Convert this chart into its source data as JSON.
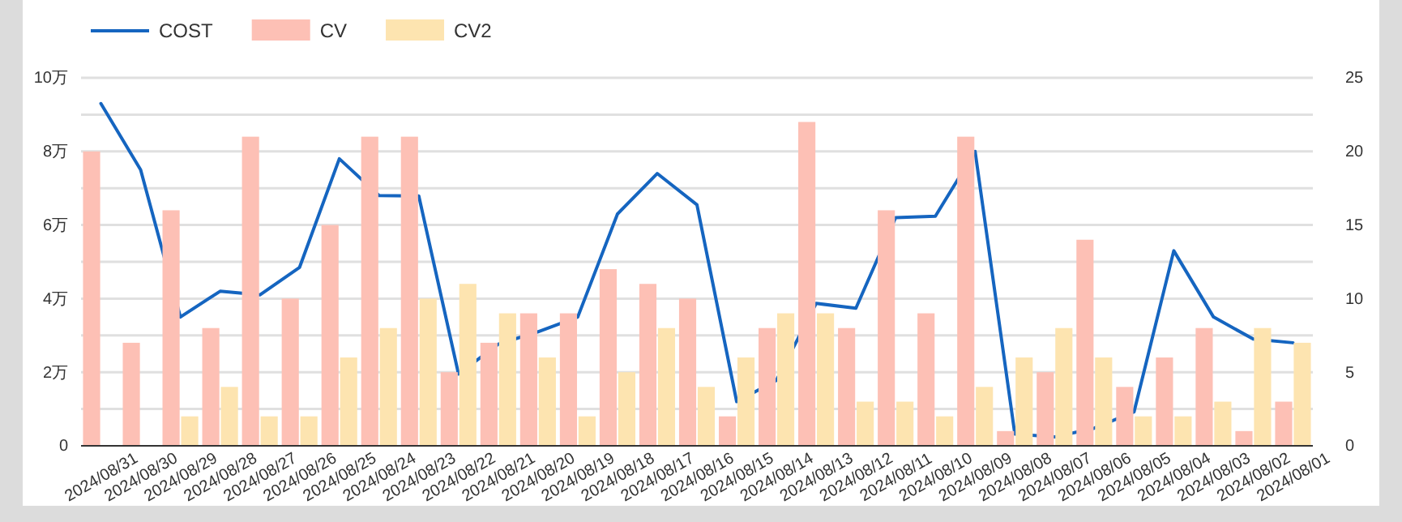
{
  "chart_data": {
    "type": "bar",
    "categories": [
      "2024/08/31",
      "2024/08/30",
      "2024/08/29",
      "2024/08/28",
      "2024/08/27",
      "2024/08/26",
      "2024/08/25",
      "2024/08/24",
      "2024/08/23",
      "2024/08/22",
      "2024/08/21",
      "2024/08/20",
      "2024/08/19",
      "2024/08/18",
      "2024/08/17",
      "2024/08/16",
      "2024/08/15",
      "2024/08/14",
      "2024/08/13",
      "2024/08/12",
      "2024/08/11",
      "2024/08/10",
      "2024/08/09",
      "2024/08/08",
      "2024/08/07",
      "2024/08/06",
      "2024/08/05",
      "2024/08/04",
      "2024/08/03",
      "2024/08/02",
      "2024/08/01"
    ],
    "series": [
      {
        "name": "COST",
        "type": "line",
        "color": "#1565c0",
        "values": [
          9.3,
          7.5,
          3.5,
          4.2,
          4.1,
          4.85,
          7.8,
          6.8,
          6.79,
          1.95,
          2.76,
          3.1,
          3.5,
          6.3,
          7.4,
          6.55,
          1.2,
          1.78,
          3.87,
          3.74,
          6.2,
          6.24,
          8.0,
          0.32,
          0.24,
          0.48,
          0.92,
          5.3,
          3.5,
          2.9,
          2.8
        ]
      },
      {
        "name": "CV",
        "axis": "y2",
        "color": "#fdc0b5",
        "values": [
          20,
          7,
          16,
          8,
          21,
          10,
          15,
          21,
          21,
          5,
          7,
          9,
          9,
          12,
          11,
          10,
          2,
          8,
          22,
          8,
          16,
          9,
          21,
          1,
          5,
          14,
          4,
          6,
          8,
          1,
          3
        ]
      },
      {
        "name": "CV2",
        "axis": "y2",
        "color": "#fde4b0",
        "values": [
          null,
          null,
          2,
          4,
          2,
          2,
          6,
          8,
          10,
          11,
          9,
          6,
          2,
          5,
          8,
          4,
          6,
          9,
          9,
          3,
          3,
          2,
          4,
          6,
          8,
          6,
          2,
          2,
          3,
          8,
          7
        ]
      }
    ],
    "ylim": [
      0,
      10
    ],
    "yticks": [
      0,
      {
        "value": 1,
        "label": null
      },
      {
        "value": 2,
        "label": "2万"
      },
      {
        "value": 3,
        "label": null
      },
      {
        "value": 4,
        "label": "4万"
      },
      {
        "value": 5,
        "label": null
      },
      {
        "value": 6,
        "label": "6万"
      },
      {
        "value": 7,
        "label": null
      },
      {
        "value": 8,
        "label": "8万"
      },
      {
        "value": 9,
        "label": null
      },
      {
        "value": 10,
        "label": "10万"
      }
    ],
    "y2lim": [
      0,
      25
    ],
    "y2ticks": [
      0,
      5,
      10,
      15,
      20,
      25
    ],
    "grid": "y",
    "legend": "top left"
  }
}
